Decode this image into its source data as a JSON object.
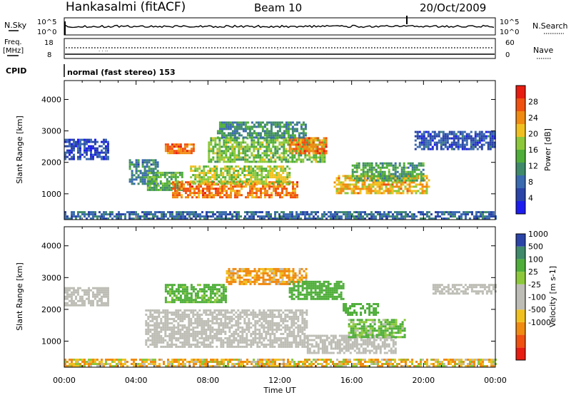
{
  "header": {
    "station": "Hankasalmi (fitACF)",
    "beam": "Beam 10",
    "date": "20/Oct/2009"
  },
  "noise_panel": {
    "left_label": "N.Sky",
    "left_top_tick": "10^5",
    "left_bottom_tick": "10^0",
    "right_top_tick": "10^5",
    "right_bottom_tick": "10^0",
    "right_label": "N.Search"
  },
  "freq_panel": {
    "left_label_1": "Freq.",
    "left_label_2": "[MHz]",
    "left_top_tick": "18",
    "left_bottom_tick": "8",
    "right_top_tick": "60",
    "right_bottom_tick": "0",
    "right_label": "Nave"
  },
  "cpid": {
    "label": "CPID",
    "mode_text": "normal (fast stereo) 153"
  },
  "x_axis": {
    "title": "Time UT",
    "ticks": [
      "00:00",
      "04:00",
      "08:00",
      "12:00",
      "16:00",
      "20:00",
      "00:00"
    ]
  },
  "colors": {
    "power_scale": [
      "#1c1cf0",
      "#2a44a8",
      "#3a6ab0",
      "#3f8a6a",
      "#4fae3a",
      "#8cc83a",
      "#f0c020",
      "#f08a10",
      "#f05010",
      "#e81c10"
    ],
    "velocity_scale": [
      "#e81c10",
      "#f05010",
      "#f08a10",
      "#f0c020",
      "#bdbdb5",
      "#bdbdb5",
      "#8cc83a",
      "#4fae3a",
      "#3f8a6a",
      "#2a44a8"
    ],
    "ground_scatter": "#bdbdb5"
  },
  "chart_data": [
    {
      "type": "heatmap",
      "name": "power",
      "ylabel": "Slant Range [km]",
      "yticks": [
        "1000",
        "2000",
        "3000",
        "4000"
      ],
      "ylim": [
        180,
        4600
      ],
      "xlim_hours": [
        0,
        24
      ],
      "colorbar": {
        "label": "Power [dB]",
        "ticks": [
          "4",
          "8",
          "12",
          "16",
          "20",
          "24",
          "28"
        ],
        "range": [
          0,
          32
        ]
      },
      "regions": [
        {
          "t": [
            0.0,
            2.5
          ],
          "r": [
            2100,
            2750
          ],
          "v": 5
        },
        {
          "t": [
            3.6,
            5.2
          ],
          "r": [
            1300,
            2100
          ],
          "v": 10
        },
        {
          "t": [
            4.6,
            6.6
          ],
          "r": [
            1100,
            1700
          ],
          "v": 14
        },
        {
          "t": [
            6.0,
            13.0
          ],
          "r": [
            900,
            1400
          ],
          "v": 25
        },
        {
          "t": [
            7.0,
            12.5
          ],
          "r": [
            1300,
            1900
          ],
          "v": 18
        },
        {
          "t": [
            5.6,
            7.2
          ],
          "r": [
            2300,
            2600
          ],
          "v": 26
        },
        {
          "t": [
            8.0,
            14.5
          ],
          "r": [
            2000,
            2800
          ],
          "v": 16
        },
        {
          "t": [
            12.5,
            14.6
          ],
          "r": [
            2300,
            2800
          ],
          "v": 25
        },
        {
          "t": [
            8.5,
            13.5
          ],
          "r": [
            2800,
            3300
          ],
          "v": 11
        },
        {
          "t": [
            15.0,
            20.3
          ],
          "r": [
            1000,
            1600
          ],
          "v": 22
        },
        {
          "t": [
            16.0,
            20.0
          ],
          "r": [
            1400,
            2000
          ],
          "v": 13
        },
        {
          "t": [
            19.5,
            24.0
          ],
          "r": [
            2400,
            3000
          ],
          "v": 6
        },
        {
          "t": [
            0.0,
            24.0
          ],
          "r": [
            200,
            450
          ],
          "v": 8
        }
      ]
    },
    {
      "type": "heatmap",
      "name": "velocity",
      "ylabel": "Slant Range [km]",
      "yticks": [
        "1000",
        "2000",
        "3000",
        "4000"
      ],
      "ylim": [
        180,
        4600
      ],
      "xlim_hours": [
        0,
        24
      ],
      "colorbar": {
        "label": "Velocity [m s-1]",
        "ticks": [
          "1000",
          "500",
          "100",
          "25",
          "-25",
          "-100",
          "-500",
          "-1000"
        ]
      },
      "regions": [
        {
          "t": [
            0.0,
            2.5
          ],
          "r": [
            2100,
            2700
          ],
          "v": 0
        },
        {
          "t": [
            4.5,
            13.5
          ],
          "r": [
            800,
            2000
          ],
          "v": 0
        },
        {
          "t": [
            13.5,
            18.5
          ],
          "r": [
            650,
            1200
          ],
          "v": 0
        },
        {
          "t": [
            5.6,
            9.0
          ],
          "r": [
            2200,
            2800
          ],
          "v": 200
        },
        {
          "t": [
            9.0,
            13.5
          ],
          "r": [
            2800,
            3300
          ],
          "v": -150
        },
        {
          "t": [
            12.5,
            15.5
          ],
          "r": [
            2300,
            2900
          ],
          "v": 300
        },
        {
          "t": [
            15.8,
            19.0
          ],
          "r": [
            1100,
            1700
          ],
          "v": 150
        },
        {
          "t": [
            15.5,
            17.5
          ],
          "r": [
            1800,
            2200
          ],
          "v": 300
        },
        {
          "t": [
            20.5,
            24.0
          ],
          "r": [
            2500,
            2800
          ],
          "v": 0
        },
        {
          "t": [
            0.0,
            24.0
          ],
          "r": [
            200,
            450
          ],
          "v": -60
        }
      ]
    }
  ]
}
